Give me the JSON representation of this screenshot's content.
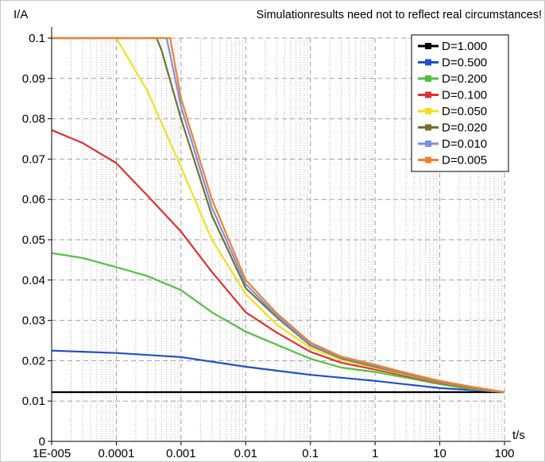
{
  "chart_data": {
    "type": "line",
    "title": "",
    "annotation": "Simulationresults need not to reflect real circumstances!",
    "ylabel": "I/A",
    "xlabel": "t/s",
    "xscale": "log",
    "xlim": [
      1e-05,
      100
    ],
    "ylim": [
      0,
      0.1
    ],
    "x_ticks": [
      1e-05,
      0.0001,
      0.001,
      0.01,
      0.1,
      1,
      10,
      100
    ],
    "x_tick_labels": [
      "1E-005",
      "0.0001",
      "0.001",
      "0.01",
      "0.1",
      "1",
      "10",
      "100"
    ],
    "y_ticks": [
      0,
      0.01,
      0.02,
      0.03,
      0.04,
      0.05,
      0.06,
      0.07,
      0.08,
      0.09,
      0.1
    ],
    "y_tick_labels": [
      "0",
      "0.01",
      "0.02",
      "0.03",
      "0.04",
      "0.05",
      "0.06",
      "0.07",
      "0.08",
      "0.09",
      "0.1"
    ],
    "grid": true,
    "legend_position": "top-right",
    "series": [
      {
        "name": "D=1.000",
        "color": "#000000",
        "points": [
          [
            1e-05,
            0.0122
          ],
          [
            100,
            0.0122
          ]
        ]
      },
      {
        "name": "D=0.500",
        "color": "#2050c8",
        "points": [
          [
            1e-05,
            0.0225
          ],
          [
            0.0001,
            0.0219
          ],
          [
            0.001,
            0.0209
          ],
          [
            0.01,
            0.0185
          ],
          [
            0.1,
            0.0165
          ],
          [
            1,
            0.015
          ],
          [
            10,
            0.0132
          ],
          [
            100,
            0.0122
          ]
        ]
      },
      {
        "name": "D=0.200",
        "color": "#50c040",
        "points": [
          [
            1e-05,
            0.0467
          ],
          [
            3e-05,
            0.0455
          ],
          [
            0.0001,
            0.0432
          ],
          [
            0.0003,
            0.041
          ],
          [
            0.001,
            0.0375
          ],
          [
            0.003,
            0.032
          ],
          [
            0.01,
            0.0272
          ],
          [
            0.03,
            0.024
          ],
          [
            0.1,
            0.0205
          ],
          [
            0.3,
            0.0183
          ],
          [
            1,
            0.0172
          ],
          [
            3,
            0.0158
          ],
          [
            10,
            0.0142
          ],
          [
            30,
            0.013
          ],
          [
            100,
            0.0122
          ]
        ]
      },
      {
        "name": "D=0.100",
        "color": "#e03030",
        "points": [
          [
            1e-05,
            0.0772
          ],
          [
            3e-05,
            0.074
          ],
          [
            0.0001,
            0.069
          ],
          [
            0.0003,
            0.061
          ],
          [
            0.001,
            0.052
          ],
          [
            0.003,
            0.042
          ],
          [
            0.01,
            0.032
          ],
          [
            0.03,
            0.027
          ],
          [
            0.1,
            0.0222
          ],
          [
            0.3,
            0.0195
          ],
          [
            1,
            0.0178
          ],
          [
            3,
            0.0162
          ],
          [
            10,
            0.0145
          ],
          [
            30,
            0.0132
          ],
          [
            100,
            0.0122
          ]
        ]
      },
      {
        "name": "D=0.050",
        "color": "#f0e020",
        "points": [
          [
            1e-05,
            0.1
          ],
          [
            0.0001,
            0.1
          ],
          [
            0.0003,
            0.087
          ],
          [
            0.001,
            0.068
          ],
          [
            0.003,
            0.05
          ],
          [
            0.01,
            0.0365
          ],
          [
            0.03,
            0.029
          ],
          [
            0.1,
            0.0232
          ],
          [
            0.3,
            0.0202
          ],
          [
            1,
            0.0182
          ],
          [
            3,
            0.0165
          ],
          [
            10,
            0.0147
          ],
          [
            30,
            0.0133
          ],
          [
            100,
            0.0122
          ]
        ]
      },
      {
        "name": "D=0.020",
        "color": "#707030",
        "points": [
          [
            1e-05,
            0.1
          ],
          [
            0.00042,
            0.1
          ],
          [
            0.0005,
            0.097
          ],
          [
            0.001,
            0.08
          ],
          [
            0.003,
            0.056
          ],
          [
            0.01,
            0.038
          ],
          [
            0.03,
            0.0308
          ],
          [
            0.1,
            0.0238
          ],
          [
            0.3,
            0.0206
          ],
          [
            1,
            0.0185
          ],
          [
            3,
            0.0167
          ],
          [
            10,
            0.0148
          ],
          [
            30,
            0.0134
          ],
          [
            100,
            0.0122
          ]
        ]
      },
      {
        "name": "D=0.010",
        "color": "#7a90e0",
        "points": [
          [
            1e-05,
            0.1
          ],
          [
            0.0006,
            0.1
          ],
          [
            0.001,
            0.083
          ],
          [
            0.003,
            0.058
          ],
          [
            0.01,
            0.039
          ],
          [
            0.03,
            0.0312
          ],
          [
            0.1,
            0.024
          ],
          [
            0.3,
            0.0208
          ],
          [
            1,
            0.0187
          ],
          [
            3,
            0.0168
          ],
          [
            10,
            0.0149
          ],
          [
            30,
            0.0135
          ],
          [
            100,
            0.0122
          ]
        ]
      },
      {
        "name": "D=0.005",
        "color": "#f08030",
        "points": [
          [
            1e-05,
            0.1
          ],
          [
            0.00068,
            0.1
          ],
          [
            0.001,
            0.085
          ],
          [
            0.003,
            0.06
          ],
          [
            0.01,
            0.04
          ],
          [
            0.03,
            0.0318
          ],
          [
            0.1,
            0.0245
          ],
          [
            0.3,
            0.021
          ],
          [
            1,
            0.019
          ],
          [
            3,
            0.017
          ],
          [
            10,
            0.015
          ],
          [
            30,
            0.0136
          ],
          [
            100,
            0.0122
          ]
        ]
      }
    ]
  }
}
